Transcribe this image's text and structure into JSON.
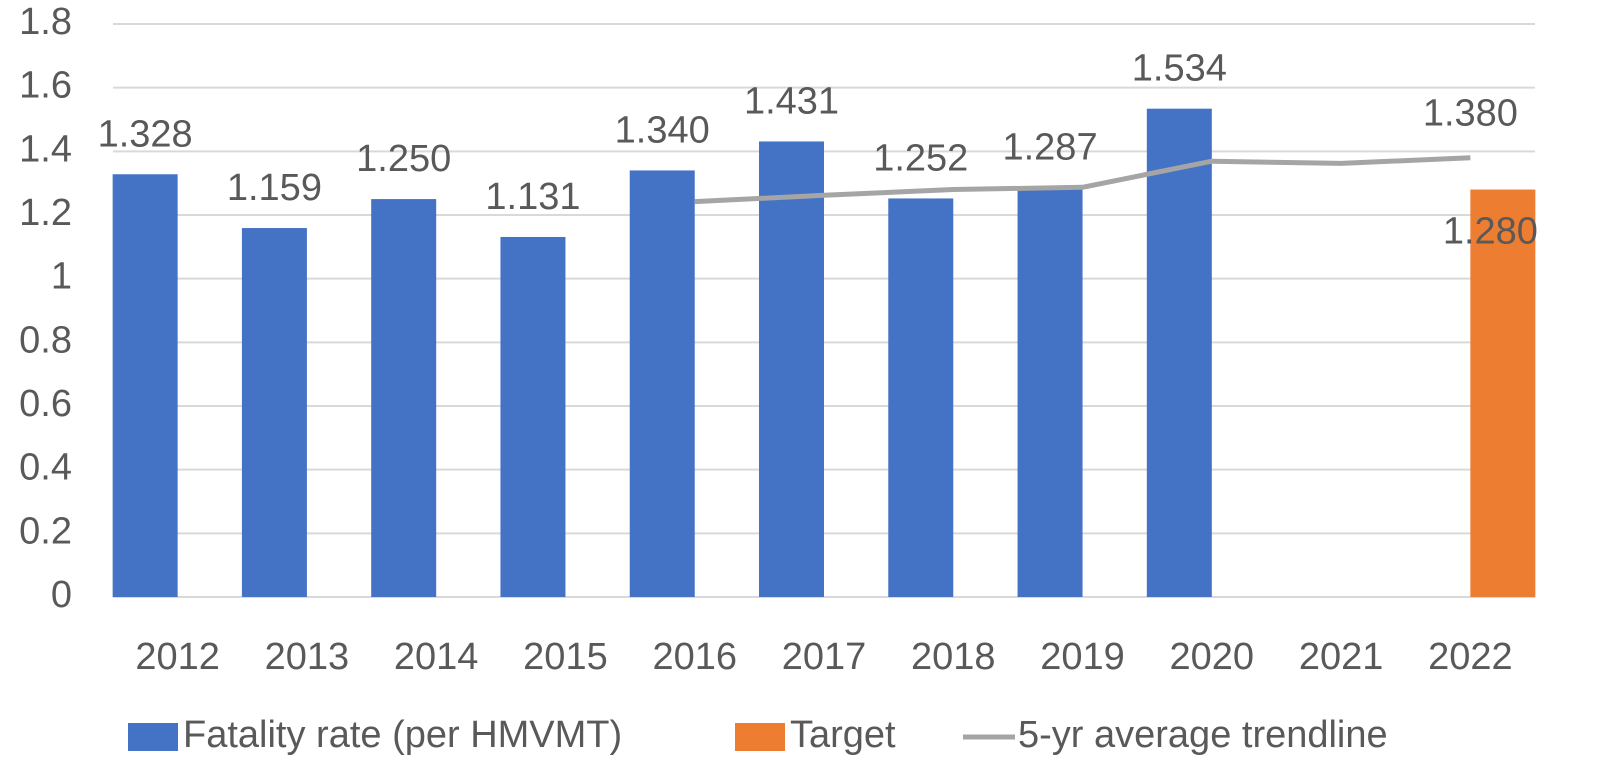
{
  "chart_data": {
    "type": "bar",
    "categories": [
      "2012",
      "2013",
      "2014",
      "2015",
      "2016",
      "2017",
      "2018",
      "2019",
      "2020",
      "2021",
      "2022"
    ],
    "series": [
      {
        "name": "Fatality rate (per HMVMT)",
        "type": "bar",
        "color": "#4472c4",
        "values": [
          1.328,
          1.159,
          1.25,
          1.131,
          1.34,
          1.431,
          1.252,
          1.287,
          1.534,
          null,
          null
        ],
        "value_labels": [
          "1.328",
          "1.159",
          "1.250",
          "1.131",
          "1.340",
          "1.431",
          "1.252",
          "1.287",
          "1.534",
          null,
          null
        ]
      },
      {
        "name": "Target",
        "type": "bar",
        "color": "#ed7d31",
        "values": [
          null,
          null,
          null,
          null,
          null,
          null,
          null,
          null,
          null,
          null,
          1.28
        ],
        "value_labels": [
          null,
          null,
          null,
          null,
          null,
          null,
          null,
          null,
          null,
          null,
          "1.280"
        ]
      },
      {
        "name": "5-yr average trendline",
        "type": "line",
        "color": "#a5a5a5",
        "values": [
          null,
          null,
          null,
          null,
          1.242,
          1.262,
          1.28,
          1.287,
          1.369,
          1.362,
          1.38
        ],
        "value_labels": [
          null,
          null,
          null,
          null,
          null,
          null,
          null,
          null,
          null,
          null,
          "1.380"
        ]
      }
    ],
    "ylim": [
      0,
      1.8
    ],
    "yticks": [
      0,
      0.2,
      0.4,
      0.6,
      0.8,
      1,
      1.2,
      1.4,
      1.6,
      1.8
    ],
    "grid": true,
    "legend": "bottom"
  }
}
